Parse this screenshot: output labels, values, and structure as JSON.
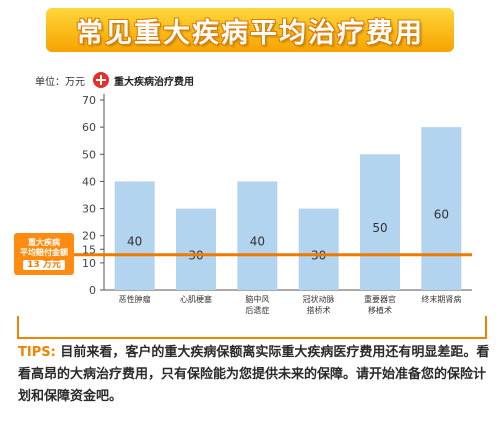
{
  "title": "常见重大疾病平均治疗费用",
  "unit_label": "单位：万元",
  "legend": {
    "icon": "red-cross-icon",
    "label": "重大疾病治疗费用"
  },
  "callout": {
    "line1": "重大疾病",
    "line2": "平均赔付金额",
    "amount": "13 万元"
  },
  "tips": {
    "label": "TIPS:",
    "text": "目前来看，客户的重大疾病保额离实际重大疾病医疗费用还有明显差距。看看高昂的大病治疗费用，只有保险能为您提供未来的保障。请开始准备您的保险计划和保障资金吧。"
  },
  "colors": {
    "bar": "#b3d4ef",
    "reference_line": "#f07a00",
    "callout": "#ff8b10",
    "tips_label": "#f08300",
    "accent_frame": "#f08300"
  },
  "chart_data": {
    "type": "bar",
    "categories": [
      "恶性肿瘤",
      "心肌梗塞",
      "脑中风后遗症",
      "冠状动脉搭桥术",
      "重要器官移植术",
      "终末期肾病"
    ],
    "category_lines": [
      [
        "恶性肿瘤"
      ],
      [
        "心肌梗塞"
      ],
      [
        "脑中风",
        "后遗症"
      ],
      [
        "冠状动脉",
        "搭桥术"
      ],
      [
        "重要器官",
        "移植术"
      ],
      [
        "终末期肾病"
      ]
    ],
    "values": [
      40,
      30,
      40,
      30,
      50,
      60
    ],
    "ylim": [
      0,
      70
    ],
    "yticks": [
      0,
      10,
      15,
      20,
      30,
      40,
      50,
      60,
      70
    ],
    "reference_line": 13,
    "grid": false,
    "legend_position": "top-left"
  }
}
